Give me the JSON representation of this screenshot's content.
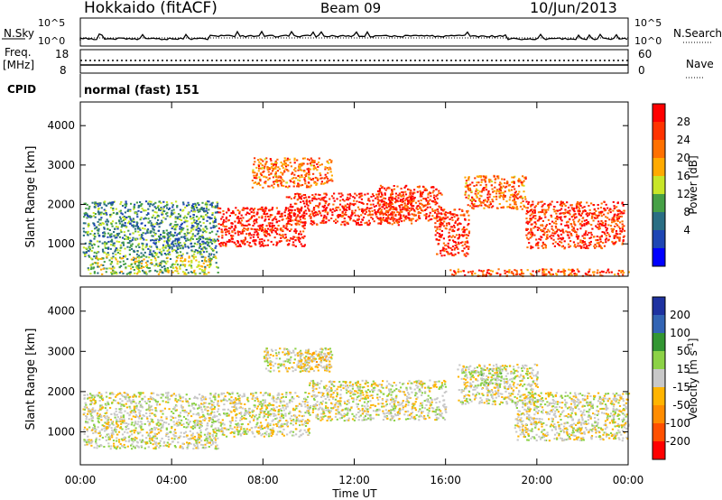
{
  "header": {
    "title": "Hokkaido (fitACF)",
    "beam": "Beam 09",
    "date": "10/Jun/2013"
  },
  "aux_panels": {
    "nsky_label": "N.Sky",
    "nsearch_label": "N.Search",
    "freq_label_1": "Freq.",
    "freq_label_2": "[MHz]",
    "nave_label": "Nave",
    "cpid_label": "CPID",
    "cpid_value": "normal (fast) 151",
    "noise_ticks_left": [
      "10^5",
      "10^0"
    ],
    "noise_ticks_right": [
      "10^5",
      "10^0"
    ],
    "freq_ticks": [
      "18",
      "8"
    ],
    "nave_ticks": [
      "60",
      "0"
    ]
  },
  "axes": {
    "xlabel": "Time UT",
    "x_ticks": [
      "00:00",
      "04:00",
      "08:00",
      "12:00",
      "16:00",
      "20:00",
      "00:00"
    ],
    "ylabel": "Slant Range [km]",
    "y_ticks": [
      "4000",
      "3000",
      "2000",
      "1000"
    ]
  },
  "power_colorbar": {
    "label": "Power [dB]",
    "ticks": [
      "28",
      "24",
      "20",
      "16",
      "12",
      "8",
      "4"
    ],
    "colors": [
      "#ff0000",
      "#ff3300",
      "#ff7000",
      "#ffaa00",
      "#c8e628",
      "#46a046",
      "#2a6e84",
      "#1e46b4",
      "#0000ff"
    ]
  },
  "velocity_colorbar": {
    "label_main": "Velocity [m s",
    "label_sup": "-1",
    "label_end": "]",
    "ticks": [
      "200",
      "100",
      "50",
      "15",
      "-15",
      "-50",
      "-100",
      "-200"
    ],
    "colors": [
      "#1e32a0",
      "#3264b4",
      "#329632",
      "#8cd246",
      "#c8c8c8",
      "#ffb400",
      "#ff8c00",
      "#ff5000",
      "#ff0000"
    ]
  },
  "chart_data": [
    {
      "type": "heatmap",
      "name": "power",
      "xlabel": "Time UT",
      "ylabel": "Slant Range [km]",
      "xlim": [
        0,
        24
      ],
      "ylim": [
        180,
        4600
      ],
      "clabel": "Power [dB]",
      "clim": [
        0,
        30
      ],
      "regions": [
        {
          "t0": 0.1,
          "t1": 6.0,
          "r0": 700,
          "r1": 2100,
          "v": 10
        },
        {
          "t0": 0.3,
          "t1": 6.0,
          "r0": 250,
          "r1": 700,
          "v": 14
        },
        {
          "t0": 6.0,
          "t1": 9.8,
          "r0": 950,
          "r1": 1950,
          "v": 27
        },
        {
          "t0": 7.5,
          "t1": 11.0,
          "r0": 2450,
          "r1": 3200,
          "v": 22
        },
        {
          "t0": 9.0,
          "t1": 14.5,
          "r0": 1500,
          "r1": 2300,
          "v": 27
        },
        {
          "t0": 13.0,
          "t1": 15.8,
          "r0": 1600,
          "r1": 2500,
          "v": 26
        },
        {
          "t0": 15.5,
          "t1": 17.0,
          "r0": 700,
          "r1": 1900,
          "v": 26
        },
        {
          "t0": 16.8,
          "t1": 19.5,
          "r0": 1900,
          "r1": 2750,
          "v": 22
        },
        {
          "t0": 19.5,
          "t1": 23.8,
          "r0": 900,
          "r1": 2100,
          "v": 26
        },
        {
          "t0": 16.0,
          "t1": 24.0,
          "r0": 200,
          "r1": 380,
          "v": 24
        }
      ]
    },
    {
      "type": "heatmap",
      "name": "velocity",
      "xlabel": "Time UT",
      "ylabel": "Slant Range [km]",
      "xlim": [
        0,
        24
      ],
      "ylim": [
        180,
        4600
      ],
      "clabel": "Velocity [m s-1]",
      "clim": [
        -250,
        250
      ],
      "regions": [
        {
          "t0": 0.1,
          "t1": 6.0,
          "r0": 600,
          "r1": 2000,
          "v": 0
        },
        {
          "t0": 6.0,
          "t1": 10.0,
          "r0": 900,
          "r1": 2000,
          "v": 0
        },
        {
          "t0": 8.0,
          "t1": 11.0,
          "r0": 2500,
          "r1": 3100,
          "v": 0
        },
        {
          "t0": 10.0,
          "t1": 16.0,
          "r0": 1300,
          "r1": 2300,
          "v": 0
        },
        {
          "t0": 16.5,
          "t1": 20.0,
          "r0": 1700,
          "r1": 2700,
          "v": 0
        },
        {
          "t0": 19.0,
          "t1": 24.0,
          "r0": 800,
          "r1": 2000,
          "v": 0
        },
        {
          "t0": 9.5,
          "t1": 11.0,
          "r0": 2600,
          "r1": 3000,
          "v": -40
        },
        {
          "t0": 17.5,
          "t1": 18.5,
          "r0": 2200,
          "r1": 2600,
          "v": 30
        }
      ]
    }
  ]
}
